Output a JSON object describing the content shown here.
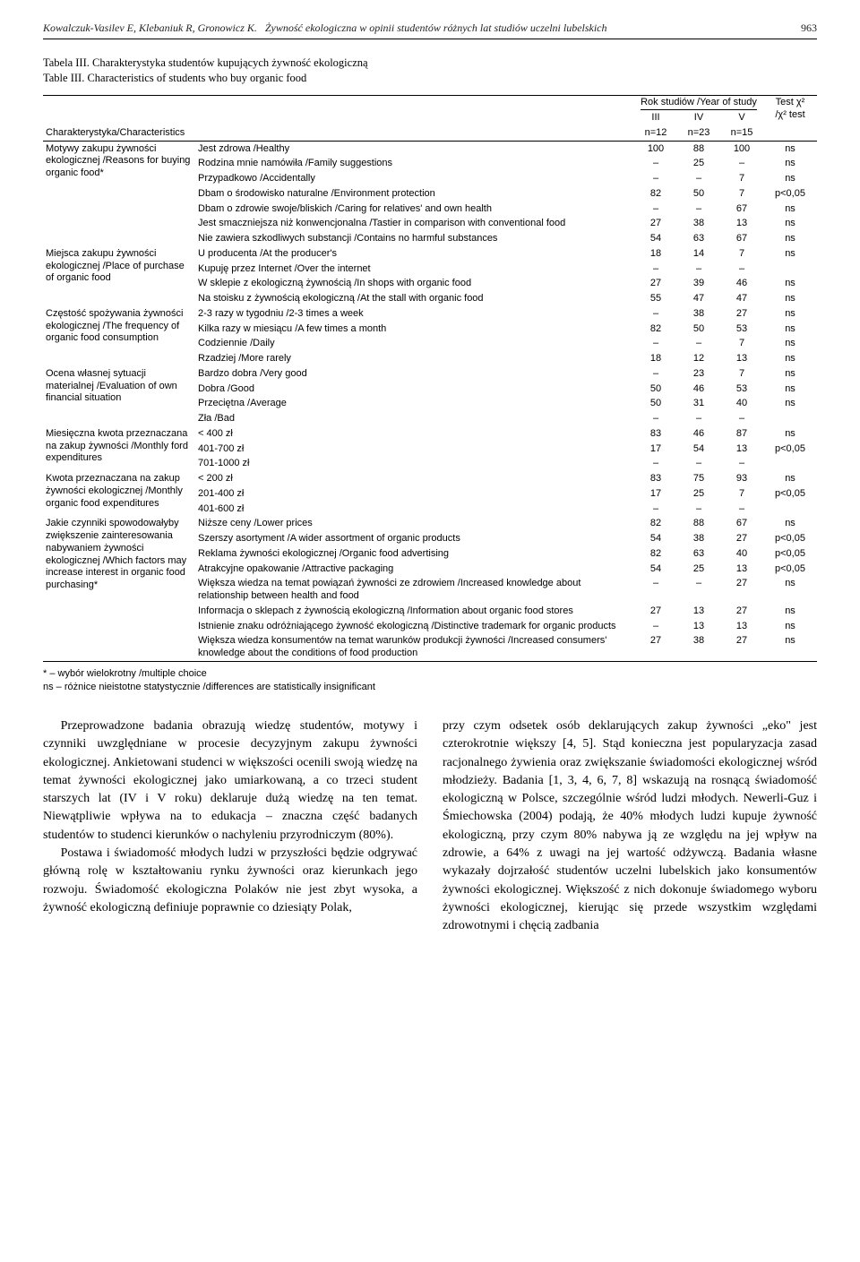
{
  "header": {
    "authors": "Kowalczuk-Vasilev E, Klebaniuk R, Gronowicz K.",
    "title_fragment": "Żywność ekologiczna w opinii studentów różnych lat studiów uczelni lubelskich",
    "page_number": "963"
  },
  "table_caption": {
    "pl": "Tabela III. Charakterystyka studentów kupujących żywność ekologiczną",
    "en": "Table III. Characteristics of students who buy organic food"
  },
  "table": {
    "header": {
      "char_label": "Charakterystyka/Characteristics",
      "year_group": "Rok studiów /Year of study",
      "test_label_1": "Test χ²",
      "test_label_2": "/χ² test",
      "cols": [
        {
          "top": "III",
          "bottom": "n=12"
        },
        {
          "top": "IV",
          "bottom": "n=23"
        },
        {
          "top": "V",
          "bottom": "n=15"
        }
      ]
    },
    "groups": [
      {
        "label": "Motywy zakupu żywności ekologicznej /Reasons for buying organic food*",
        "rows": [
          {
            "label": "Jest zdrowa /Healthy",
            "v": [
              "100",
              "88",
              "100",
              "ns"
            ]
          },
          {
            "label": "Rodzina mnie namówiła /Family suggestions",
            "v": [
              "–",
              "25",
              "–",
              "ns"
            ]
          },
          {
            "label": "Przypadkowo /Accidentally",
            "v": [
              "–",
              "–",
              "7",
              "ns"
            ]
          },
          {
            "label": "Dbam o środowisko naturalne /Environment protection",
            "v": [
              "82",
              "50",
              "7",
              "p<0,05"
            ]
          },
          {
            "label": "Dbam o zdrowie swoje/bliskich /Caring for relatives' and own health",
            "v": [
              "–",
              "–",
              "67",
              "ns"
            ]
          },
          {
            "label": "Jest smaczniejsza niż konwencjonalna /Tastier in comparison with conventional food",
            "v": [
              "27",
              "38",
              "13",
              "ns"
            ]
          },
          {
            "label": "Nie zawiera szkodliwych substancji /Contains no harmful substances",
            "v": [
              "54",
              "63",
              "67",
              "ns"
            ]
          }
        ]
      },
      {
        "label": "Miejsca zakupu żywności ekologicznej /Place of purchase of organic food",
        "rows": [
          {
            "label": "U producenta /At the producer's",
            "v": [
              "18",
              "14",
              "7",
              "ns"
            ]
          },
          {
            "label": "Kupuję przez Internet /Over the internet",
            "v": [
              "–",
              "–",
              "–",
              ""
            ]
          },
          {
            "label": "W sklepie z ekologiczną żywnością /In shops with organic food",
            "v": [
              "27",
              "39",
              "46",
              "ns"
            ]
          },
          {
            "label": "Na stoisku z żywnością ekologiczną /At the stall with organic food",
            "v": [
              "55",
              "47",
              "47",
              "ns"
            ]
          }
        ]
      },
      {
        "label": "Częstość spożywania żywności ekologicznej /The frequency of organic food consumption",
        "rows": [
          {
            "label": "2-3 razy w tygodniu /2-3 times a week",
            "v": [
              "–",
              "38",
              "27",
              "ns"
            ]
          },
          {
            "label": "Kilka razy w miesiącu /A few times a month",
            "v": [
              "82",
              "50",
              "53",
              "ns"
            ]
          },
          {
            "label": "Codziennie /Daily",
            "v": [
              "–",
              "–",
              "7",
              "ns"
            ]
          },
          {
            "label": "Rzadziej /More rarely",
            "v": [
              "18",
              "12",
              "13",
              "ns"
            ]
          }
        ]
      },
      {
        "label": "Ocena własnej sytuacji materialnej /Evaluation of own financial situation",
        "rows": [
          {
            "label": "Bardzo dobra /Very good",
            "v": [
              "–",
              "23",
              "7",
              "ns"
            ]
          },
          {
            "label": "Dobra /Good",
            "v": [
              "50",
              "46",
              "53",
              "ns"
            ]
          },
          {
            "label": "Przeciętna /Average",
            "v": [
              "50",
              "31",
              "40",
              "ns"
            ]
          },
          {
            "label": "Zła /Bad",
            "v": [
              "–",
              "–",
              "–",
              ""
            ]
          }
        ]
      },
      {
        "label": "Miesięczna kwota przeznaczana na zakup żywności /Monthly ford expenditures",
        "rows": [
          {
            "label": "< 400 zł",
            "v": [
              "83",
              "46",
              "87",
              "ns"
            ]
          },
          {
            "label": "401-700 zł",
            "v": [
              "17",
              "54",
              "13",
              "p<0,05"
            ]
          },
          {
            "label": "701-1000 zł",
            "v": [
              "–",
              "–",
              "–",
              ""
            ]
          }
        ]
      },
      {
        "label": "Kwota przeznaczana na zakup żywności ekologicznej /Monthly organic food expenditures",
        "rows": [
          {
            "label": "< 200 zł",
            "v": [
              "83",
              "75",
              "93",
              "ns"
            ]
          },
          {
            "label": "201-400 zł",
            "v": [
              "17",
              "25",
              "7",
              "p<0,05"
            ]
          },
          {
            "label": "401-600 zł",
            "v": [
              "–",
              "–",
              "–",
              ""
            ]
          }
        ]
      },
      {
        "label": "Jakie czynniki spowodowałyby zwiększenie zainteresowania nabywaniem żywności ekologicznej /Which factors may increase interest in organic food purchasing*",
        "rows": [
          {
            "label": "Niższe ceny /Lower prices",
            "v": [
              "82",
              "88",
              "67",
              "ns"
            ]
          },
          {
            "label": "Szerszy asortyment /A wider assortment of organic products",
            "v": [
              "54",
              "38",
              "27",
              "p<0,05"
            ]
          },
          {
            "label": "Reklama żywności ekologicznej /Organic food advertising",
            "v": [
              "82",
              "63",
              "40",
              "p<0,05"
            ]
          },
          {
            "label": "Atrakcyjne opakowanie /Attractive packaging",
            "v": [
              "54",
              "25",
              "13",
              "p<0,05"
            ]
          },
          {
            "label": "Większa wiedza na temat powiązań żywności ze zdrowiem /Increased knowledge about relationship between health and food",
            "v": [
              "–",
              "–",
              "27",
              "ns"
            ]
          },
          {
            "label": "Informacja o sklepach z żywnością ekologiczną /Information about organic food stores",
            "v": [
              "27",
              "13",
              "27",
              "ns"
            ]
          },
          {
            "label": "Istnienie znaku odróżniającego żywność ekologiczną /Distinctive trademark for organic products",
            "v": [
              "–",
              "13",
              "13",
              "ns"
            ]
          },
          {
            "label": "Większa wiedza konsumentów na temat warunków produkcji żywności /Increased consumers' knowledge about the conditions of food production",
            "v": [
              "27",
              "38",
              "27",
              "ns"
            ]
          }
        ]
      }
    ]
  },
  "footnotes": [
    "* – wybór wielokrotny /multiple choice",
    "ns – różnice nieistotne statystycznie /differences are statistically insignificant"
  ],
  "body": {
    "left": [
      "Przeprowadzone badania obrazują wiedzę studentów, motywy i czynniki uwzględniane w procesie decyzyjnym zakupu żywności ekologicznej. Ankietowani studenci w większości ocenili swoją wiedzę na temat żywności ekologicznej jako umiarkowaną, a co trzeci student starszych lat (IV i V roku) deklaruje dużą wiedzę na ten temat. Niewątpliwie wpływa na to edukacja – znaczna część badanych studentów to studenci kierunków o nachyleniu przyrodniczym (80%).",
      "Postawa i świadomość młodych ludzi w przyszłości będzie odgrywać główną rolę w kształtowaniu rynku żywności oraz kierunkach jego rozwoju. Świadomość ekologiczna Polaków nie jest zbyt wysoka, a żywność ekologiczną definiuje poprawnie co dziesiąty Polak,"
    ],
    "right": [
      "przy czym odsetek osób deklarujących zakup żywności „eko\" jest czterokrotnie większy [4, 5]. Stąd konieczna jest popularyzacja zasad racjonalnego żywienia oraz zwiększanie świadomości ekologicznej wśród młodzieży. Badania [1, 3, 4, 6, 7, 8] wskazują na rosnącą świadomość ekologiczną w Polsce, szczególnie wśród ludzi młodych. Newerli-Guz i Śmiechowska (2004) podają, że 40% młodych ludzi kupuje żywność ekologiczną, przy czym 80% nabywa ją ze względu na jej wpływ na zdrowie, a 64% z uwagi na jej wartość odżywczą. Badania własne wykazały dojrzałość studentów uczelni lubelskich jako konsumentów żywności ekologicznej. Większość z nich dokonuje świadomego wyboru żywności ekologicznej, kierując się przede wszystkim względami zdrowotnymi i chęcią zadbania"
    ]
  }
}
